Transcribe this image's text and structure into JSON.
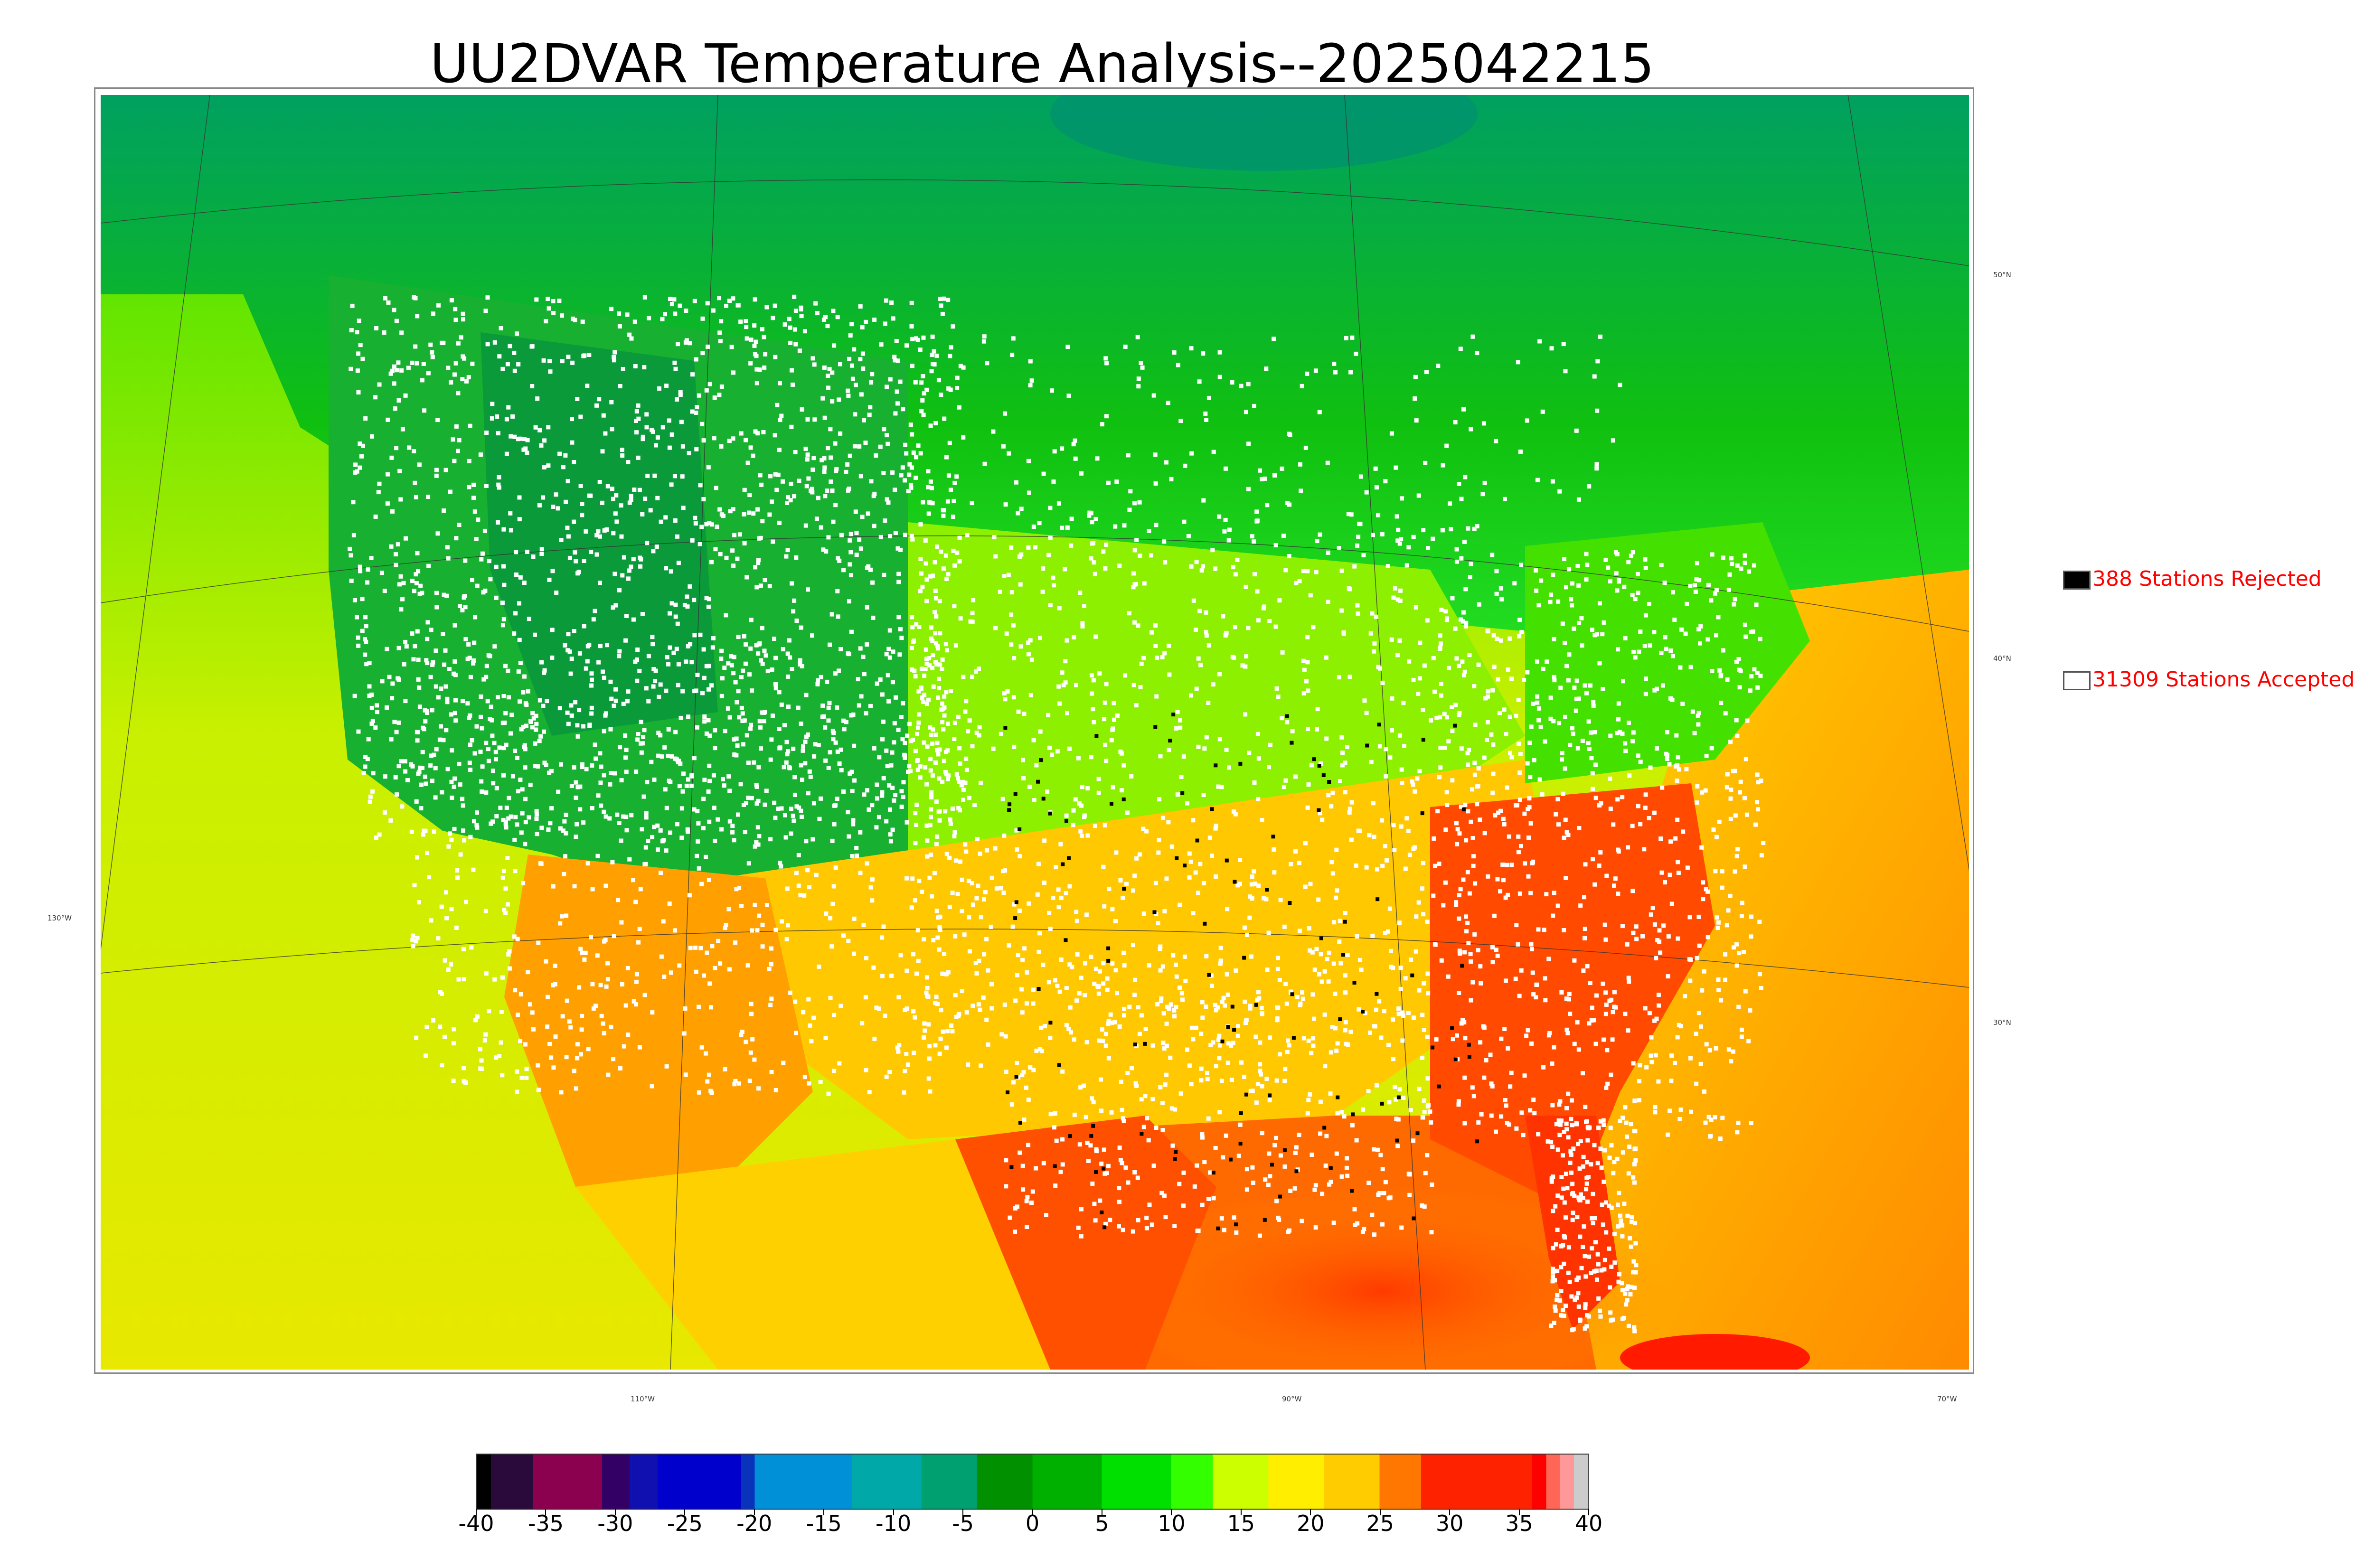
{
  "title": "UU2DVAR Temperature Analysis--2025042215",
  "map": {
    "lat_labels": [
      "50°N",
      "40°N",
      "30°N"
    ],
    "lon_labels": [
      "130°W",
      "110°W",
      "90°W",
      "70°W"
    ],
    "colors": {
      "land_cold": "#1a9a3a",
      "land_cool": "#22cc22",
      "land_mild": "#99ff00",
      "land_warm": "#ffd700",
      "land_hot": "#ff6600",
      "ocean_gulf": "#ff5a00",
      "ocean_pacific": "#e6f000",
      "ocean_atlantic": "#ffb000",
      "station_accepted": "#ffffff",
      "station_rejected": "#000000"
    }
  },
  "legend": {
    "rejected_label": "388 Stations Rejected",
    "accepted_label": "31309 Stations Accepted",
    "rejected_color": "#000000",
    "accepted_color": "#ffffff",
    "text_color": "#ff0000"
  },
  "colorbar": {
    "tick_labels": [
      "-40",
      "-35",
      "-30",
      "-25",
      "-20",
      "-15",
      "-10",
      "-5",
      "0",
      "5",
      "10",
      "15",
      "20",
      "25",
      "30",
      "35",
      "40"
    ],
    "range": [
      -40,
      40
    ],
    "stops": [
      {
        "value": -40,
        "color": "#000000"
      },
      {
        "value": -39,
        "color": "#2a0a3a"
      },
      {
        "value": -36,
        "color": "#8b004f"
      },
      {
        "value": -31,
        "color": "#330066"
      },
      {
        "value": -29,
        "color": "#1010b0"
      },
      {
        "value": -27,
        "color": "#0000cc"
      },
      {
        "value": -21,
        "color": "#0a33bb"
      },
      {
        "value": -20,
        "color": "#0090d8"
      },
      {
        "value": -13,
        "color": "#00a8a8"
      },
      {
        "value": -8,
        "color": "#00a070"
      },
      {
        "value": -4,
        "color": "#009000"
      },
      {
        "value": 0,
        "color": "#00b000"
      },
      {
        "value": 5,
        "color": "#00e000"
      },
      {
        "value": 10,
        "color": "#33ff00"
      },
      {
        "value": 13,
        "color": "#ccff00"
      },
      {
        "value": 17,
        "color": "#ffee00"
      },
      {
        "value": 21,
        "color": "#ffcc00"
      },
      {
        "value": 25,
        "color": "#ff7700"
      },
      {
        "value": 28,
        "color": "#ff2200"
      },
      {
        "value": 36,
        "color": "#ff0000"
      },
      {
        "value": 37,
        "color": "#ff6655"
      },
      {
        "value": 38,
        "color": "#ff9999"
      },
      {
        "value": 39,
        "color": "#cccccc"
      },
      {
        "value": 40,
        "color": "#d8d8d8"
      }
    ]
  }
}
